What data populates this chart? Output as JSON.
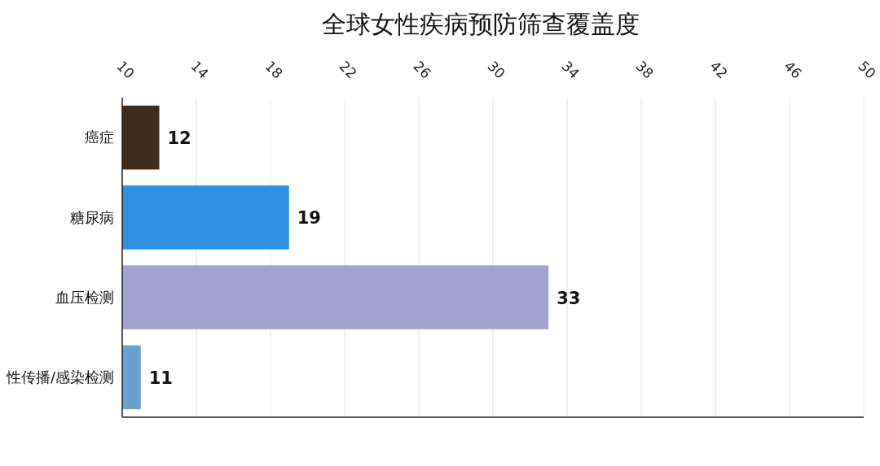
{
  "chart_data": {
    "type": "bar",
    "orientation": "horizontal",
    "title": "全球女性疾病预防筛查覆盖度",
    "categories": [
      "癌症",
      "糖尿病",
      "血压检测",
      "性传播/感染检测"
    ],
    "values": [
      12,
      19,
      33,
      11
    ],
    "colors": [
      "#3e2c1e",
      "#3090e2",
      "#a3a3d1",
      "#6a9fce"
    ],
    "xlim": [
      10,
      50
    ],
    "xticks": [
      10,
      14,
      18,
      22,
      26,
      30,
      34,
      38,
      42,
      46,
      50
    ],
    "grid": "x",
    "data_labels": true
  }
}
